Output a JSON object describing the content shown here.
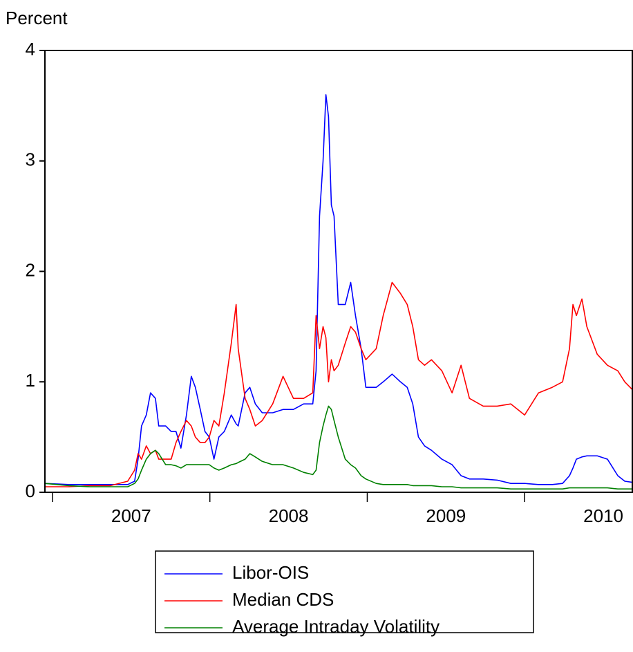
{
  "chart_data": {
    "type": "line",
    "ylabel": "Percent",
    "x": [
      2006.952,
      2007.105,
      2007.237,
      2007.368,
      2007.478,
      2007.522,
      2007.544,
      2007.566,
      2007.596,
      2007.623,
      2007.654,
      2007.675,
      2007.719,
      2007.754,
      2007.785,
      2007.816,
      2007.851,
      2007.882,
      2007.908,
      2007.939,
      2007.969,
      2007.996,
      2008.026,
      2008.057,
      2008.092,
      2008.136,
      2008.167,
      2008.18,
      2008.224,
      2008.254,
      2008.289,
      2008.333,
      2008.399,
      2008.465,
      2008.531,
      2008.596,
      2008.654,
      2008.675,
      2008.697,
      2008.719,
      2008.737,
      2008.754,
      2008.772,
      2008.789,
      2008.816,
      2008.86,
      2008.895,
      2008.925,
      2008.961,
      2008.991,
      2009.057,
      2009.101,
      2009.158,
      2009.211,
      2009.254,
      2009.289,
      2009.325,
      2009.364,
      2009.408,
      2009.474,
      2009.539,
      2009.596,
      2009.649,
      2009.737,
      2009.825,
      2009.912,
      2010.0,
      2010.088,
      2010.175,
      2010.241,
      2010.285,
      2010.307,
      2010.329,
      2010.364,
      2010.395,
      2010.461,
      2010.526,
      2010.592,
      2010.636,
      2010.684
    ],
    "series": [
      {
        "name": "Libor-OIS",
        "color": "#0000ff",
        "values": [
          0.08,
          0.07,
          0.07,
          0.07,
          0.07,
          0.1,
          0.3,
          0.6,
          0.7,
          0.9,
          0.85,
          0.6,
          0.6,
          0.55,
          0.55,
          0.4,
          0.7,
          1.05,
          0.95,
          0.75,
          0.55,
          0.5,
          0.3,
          0.5,
          0.55,
          0.7,
          0.62,
          0.6,
          0.9,
          0.95,
          0.8,
          0.72,
          0.72,
          0.75,
          0.75,
          0.8,
          0.8,
          1.1,
          2.5,
          3.0,
          3.6,
          3.4,
          2.6,
          2.5,
          1.7,
          1.7,
          1.9,
          1.6,
          1.3,
          0.95,
          0.95,
          1.0,
          1.07,
          1.0,
          0.95,
          0.8,
          0.5,
          0.42,
          0.38,
          0.3,
          0.25,
          0.15,
          0.12,
          0.12,
          0.11,
          0.08,
          0.08,
          0.07,
          0.07,
          0.08,
          0.15,
          0.22,
          0.3,
          0.32,
          0.33,
          0.33,
          0.3,
          0.15,
          0.1,
          0.09
        ]
      },
      {
        "name": "Median CDS",
        "color": "#ff0000",
        "values": [
          0.05,
          0.05,
          0.06,
          0.06,
          0.1,
          0.2,
          0.35,
          0.3,
          0.42,
          0.35,
          0.38,
          0.3,
          0.3,
          0.3,
          0.45,
          0.55,
          0.65,
          0.6,
          0.5,
          0.45,
          0.45,
          0.5,
          0.65,
          0.6,
          0.9,
          1.35,
          1.7,
          1.3,
          0.85,
          0.75,
          0.6,
          0.65,
          0.8,
          1.05,
          0.85,
          0.85,
          0.9,
          1.6,
          1.3,
          1.5,
          1.4,
          1.0,
          1.2,
          1.1,
          1.15,
          1.35,
          1.5,
          1.45,
          1.3,
          1.2,
          1.3,
          1.6,
          1.9,
          1.8,
          1.7,
          1.5,
          1.2,
          1.15,
          1.2,
          1.1,
          0.9,
          1.15,
          0.85,
          0.78,
          0.78,
          0.8,
          0.7,
          0.9,
          0.95,
          1.0,
          1.3,
          1.7,
          1.6,
          1.75,
          1.5,
          1.25,
          1.15,
          1.1,
          1.0,
          0.93
        ]
      },
      {
        "name": "Average Intraday Volatility",
        "color": "#008000",
        "values": [
          0.08,
          0.06,
          0.05,
          0.05,
          0.05,
          0.08,
          0.12,
          0.2,
          0.3,
          0.35,
          0.38,
          0.35,
          0.25,
          0.25,
          0.24,
          0.22,
          0.25,
          0.25,
          0.25,
          0.25,
          0.25,
          0.25,
          0.22,
          0.2,
          0.22,
          0.25,
          0.26,
          0.27,
          0.3,
          0.35,
          0.32,
          0.28,
          0.25,
          0.25,
          0.22,
          0.18,
          0.16,
          0.2,
          0.45,
          0.6,
          0.7,
          0.78,
          0.75,
          0.65,
          0.5,
          0.3,
          0.25,
          0.22,
          0.15,
          0.12,
          0.08,
          0.07,
          0.07,
          0.07,
          0.07,
          0.06,
          0.06,
          0.06,
          0.06,
          0.05,
          0.05,
          0.04,
          0.04,
          0.04,
          0.04,
          0.03,
          0.03,
          0.03,
          0.03,
          0.03,
          0.04,
          0.04,
          0.04,
          0.04,
          0.04,
          0.04,
          0.04,
          0.03,
          0.03,
          0.03
        ]
      }
    ],
    "xlim": [
      2006.952,
      2010.684
    ],
    "xticks": [
      2007,
      2008,
      2009,
      2010
    ],
    "ylim": [
      0,
      4
    ],
    "yticks": [
      0,
      1,
      2,
      3,
      4
    ],
    "grid": false,
    "legend": "bottom"
  }
}
